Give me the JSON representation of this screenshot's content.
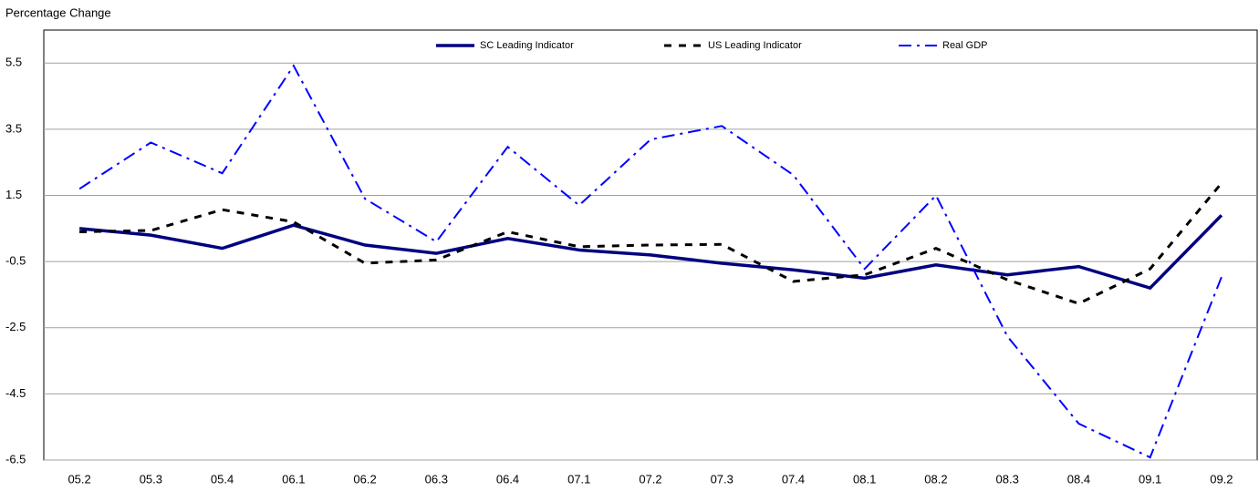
{
  "chart_data": {
    "type": "line",
    "y_axis_title": "Percentage Change",
    "categories": [
      "05.2",
      "05.3",
      "05.4",
      "06.1",
      "06.2",
      "06.3",
      "06.4",
      "07.1",
      "07.2",
      "07.3",
      "07.4",
      "08.1",
      "08.2",
      "08.3",
      "08.4",
      "09.1",
      "09.2"
    ],
    "series": [
      {
        "name": "SC Leading Indicator",
        "color": "#000080",
        "dash": "solid",
        "values": [
          0.5,
          0.3,
          -0.1,
          0.6,
          0.0,
          -0.25,
          0.2,
          -0.15,
          -0.3,
          -0.55,
          -0.75,
          -1.0,
          -0.6,
          -0.9,
          -0.65,
          -1.3,
          0.9
        ]
      },
      {
        "name": "US Leading Indicator",
        "color": "#000000",
        "dash": "dashed",
        "values": [
          0.4,
          0.44,
          1.07,
          0.7,
          -0.55,
          -0.45,
          0.4,
          -0.05,
          0.0,
          0.02,
          -1.1,
          -0.9,
          -0.1,
          -1.05,
          -1.77,
          -0.72,
          1.87
        ]
      },
      {
        "name": "Real GDP",
        "color": "#0000ff",
        "dash": "dashdot",
        "values": [
          1.7,
          3.1,
          2.17,
          5.42,
          1.4,
          0.1,
          2.97,
          1.2,
          3.19,
          3.6,
          2.12,
          -0.72,
          1.5,
          -2.76,
          -5.4,
          -6.42,
          -0.97
        ]
      }
    ],
    "ylim": [
      -6.5,
      6.5
    ],
    "yticks": [
      -6.5,
      -4.5,
      -2.5,
      -0.5,
      1.5,
      3.5,
      5.5
    ],
    "grid": true,
    "legend": "top"
  }
}
